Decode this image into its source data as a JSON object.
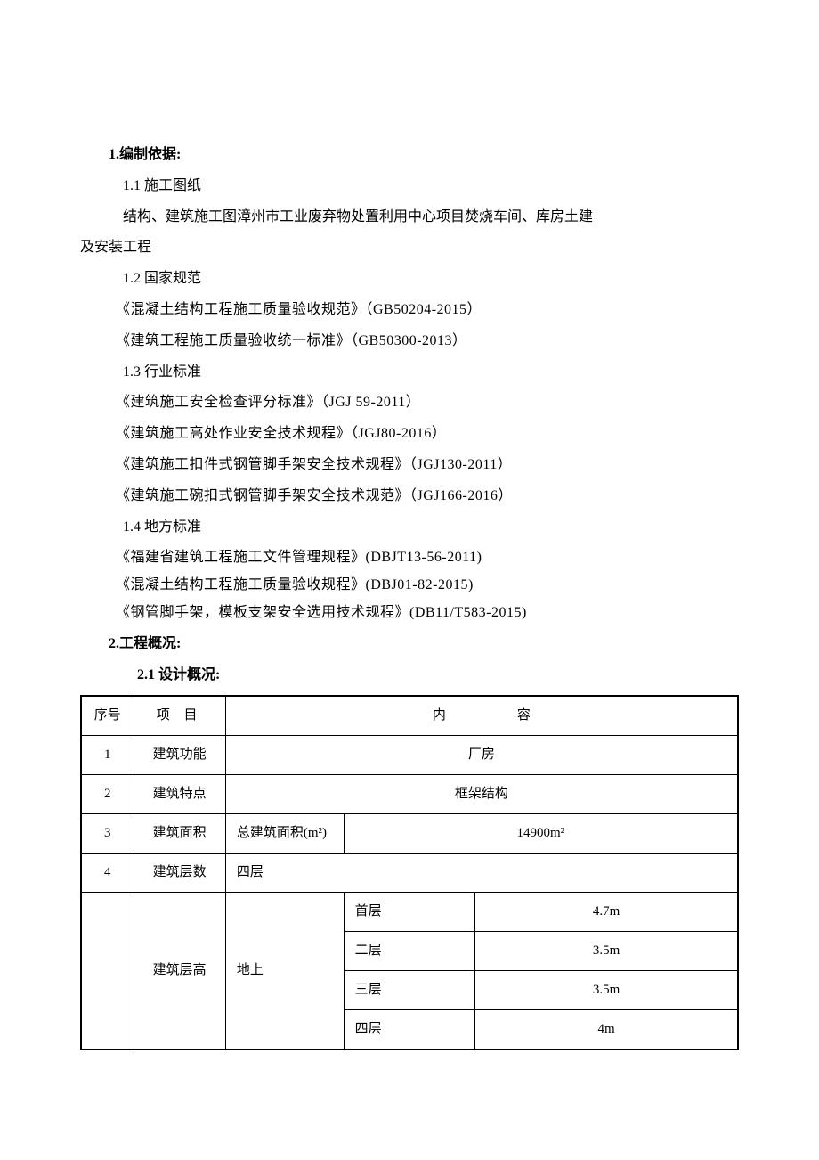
{
  "section1": {
    "heading": "1.编制依据:",
    "sub1_1": "1.1 施工图纸",
    "body1": "结构、建筑施工图漳州市工业废弃物处置利用中心项目焚烧车间、库房土建",
    "body2": "及安装工程",
    "sub1_2": "1.2 国家规范",
    "spec1": "《混凝土结构工程施工质量验收规范》（GB50204-2015）",
    "spec2": "《建筑工程施工质量验收统一标准》（GB50300-2013）",
    "sub1_3": "1.3 行业标准",
    "spec3": "《建筑施工安全检查评分标准》（JGJ 59-2011）",
    "spec4": "《建筑施工高处作业安全技术规程》（JGJ80-2016）",
    "spec5": "《建筑施工扣件式钢管脚手架安全技术规程》（JGJ130-2011）",
    "spec6": "《建筑施工碗扣式钢管脚手架安全技术规范》（JGJ166-2016）",
    "sub1_4": "1.4 地方标准",
    "spec7": "《福建省建筑工程施工文件管理规程》(DBJT13-56-2011)",
    "spec8": "《混凝土结构工程施工质量验收规程》(DBJ01-82-2015)",
    "spec9": "《钢管脚手架，模板支架安全选用技术规程》(DB11/T583-2015)"
  },
  "section2": {
    "heading": "2.工程概况:",
    "sub2_1": "2.1 设计概况:"
  },
  "table": {
    "headers": {
      "seq": "序号",
      "item": "项 目",
      "content": "内容"
    },
    "rows": {
      "r1": {
        "seq": "1",
        "item": "建筑功能",
        "content": "厂房"
      },
      "r2": {
        "seq": "2",
        "item": "建筑特点",
        "content": "框架结构"
      },
      "r3": {
        "seq": "3",
        "item": "建筑面积",
        "label": "总建筑面积(m²)",
        "value": "14900m²"
      },
      "r4": {
        "seq": "4",
        "item": "建筑层数",
        "label": "四层"
      },
      "r5": {
        "item": "建筑层高",
        "label": "地上",
        "floors": {
          "f1": {
            "name": "首层",
            "val": "4.7m"
          },
          "f2": {
            "name": "二层",
            "val": "3.5m"
          },
          "f3": {
            "name": "三层",
            "val": "3.5m"
          },
          "f4": {
            "name": "四层",
            "val": "4m"
          }
        }
      }
    }
  }
}
